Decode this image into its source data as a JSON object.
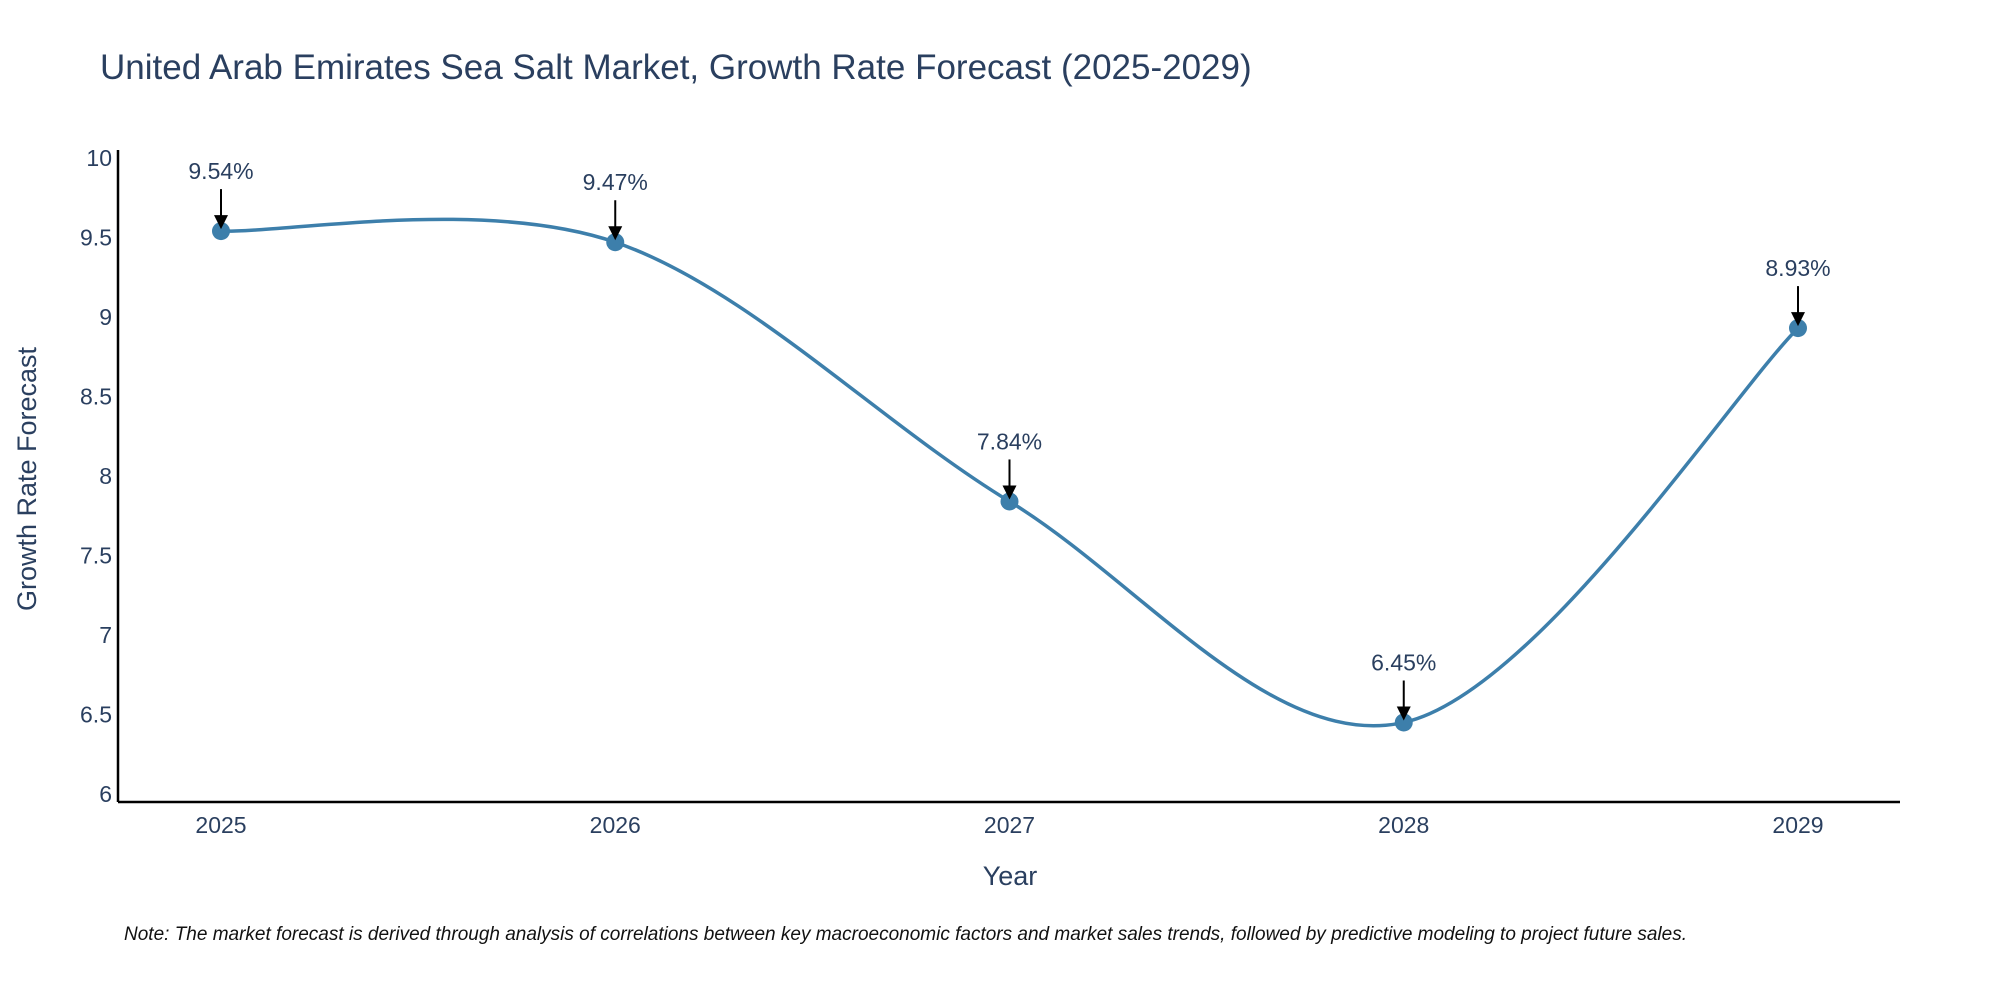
{
  "chart_data": {
    "type": "line",
    "title": "United Arab Emirates Sea Salt Market, Growth Rate Forecast (2025-2029)",
    "xlabel": "Year",
    "ylabel": "Growth Rate Forecast",
    "categories": [
      "2025",
      "2026",
      "2027",
      "2028",
      "2029"
    ],
    "series": [
      {
        "name": "Growth Rate Forecast",
        "values": [
          9.54,
          9.47,
          7.84,
          6.45,
          8.93
        ],
        "labels": [
          "9.54%",
          "9.47%",
          "7.84%",
          "6.45%",
          "8.93%"
        ]
      }
    ],
    "ylim": [
      5.95,
      10.05
    ],
    "yticks": [
      "6",
      "6.5",
      "7",
      "7.5",
      "8",
      "8.5",
      "9",
      "9.5",
      "10"
    ],
    "grid": false,
    "line_color": "#3d7fab",
    "marker_color": "#3d7fab",
    "arrow_color": "#000000",
    "axis_color": "#000000"
  },
  "note": "Note: The market forecast is derived through analysis of correlations between key macroeconomic factors and market sales trends, followed by predictive modeling to project future sales."
}
